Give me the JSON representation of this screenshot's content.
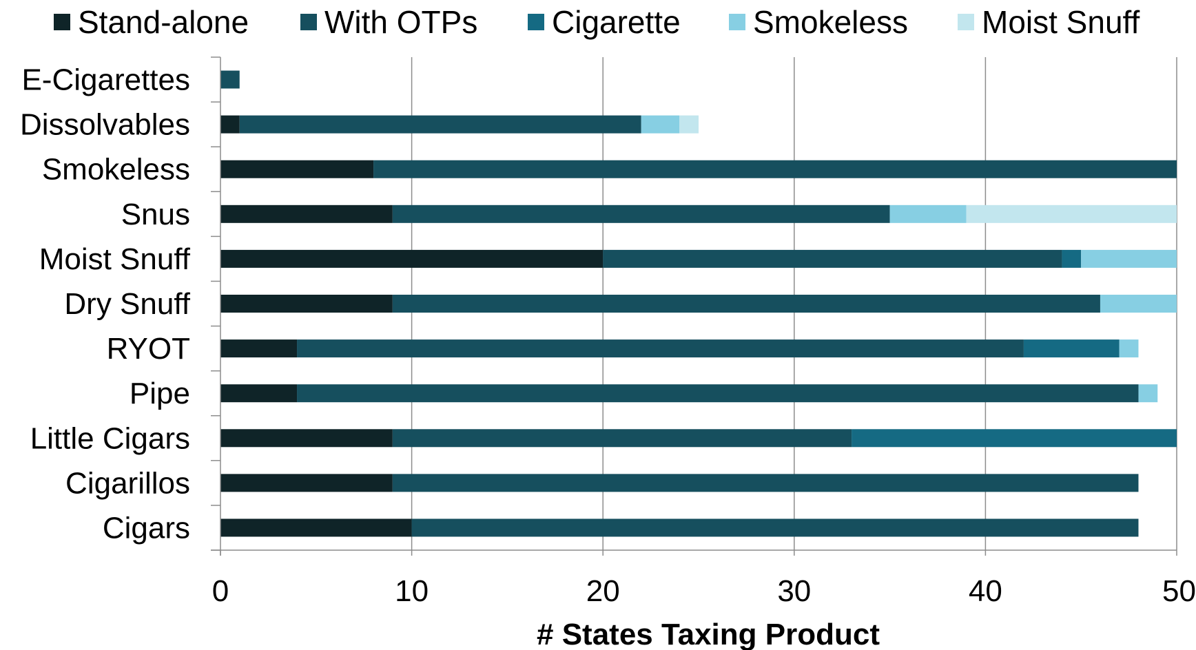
{
  "chart_data": {
    "type": "bar",
    "orientation": "horizontal",
    "stacked": true,
    "title": "",
    "xlabel": "# States Taxing Product",
    "ylabel": "",
    "xlim": [
      0,
      50
    ],
    "xticks": [
      "0",
      "10",
      "20",
      "30",
      "40",
      "50"
    ],
    "grid": "vertical",
    "legend_position": "top",
    "categories": [
      "E-Cigarettes",
      "Dissolvables",
      "Smokeless",
      "Snus",
      "Moist Snuff",
      "Dry Snuff",
      "RYOT",
      "Pipe",
      "Little Cigars",
      "Cigarillos",
      "Cigars"
    ],
    "series": [
      {
        "name": "Stand-alone",
        "color": "#0f2428",
        "values": [
          0,
          1,
          8,
          9,
          20,
          9,
          4,
          4,
          9,
          9,
          10
        ]
      },
      {
        "name": "With OTPs",
        "color": "#164f5e",
        "values": [
          1,
          21,
          42,
          26,
          24,
          37,
          38,
          44,
          24,
          39,
          38
        ]
      },
      {
        "name": "Cigarette",
        "color": "#156a83",
        "values": [
          0,
          0,
          0,
          0,
          1,
          0,
          5,
          0,
          17,
          0,
          0
        ]
      },
      {
        "name": "Smokeless",
        "color": "#87cfe3",
        "values": [
          0,
          2,
          0,
          4,
          5,
          4,
          1,
          1,
          0,
          0,
          0
        ]
      },
      {
        "name": "Moist Snuff",
        "color": "#c2e6ee",
        "values": [
          0,
          1,
          0,
          11,
          0,
          0,
          0,
          0,
          0,
          0,
          0
        ]
      }
    ]
  }
}
